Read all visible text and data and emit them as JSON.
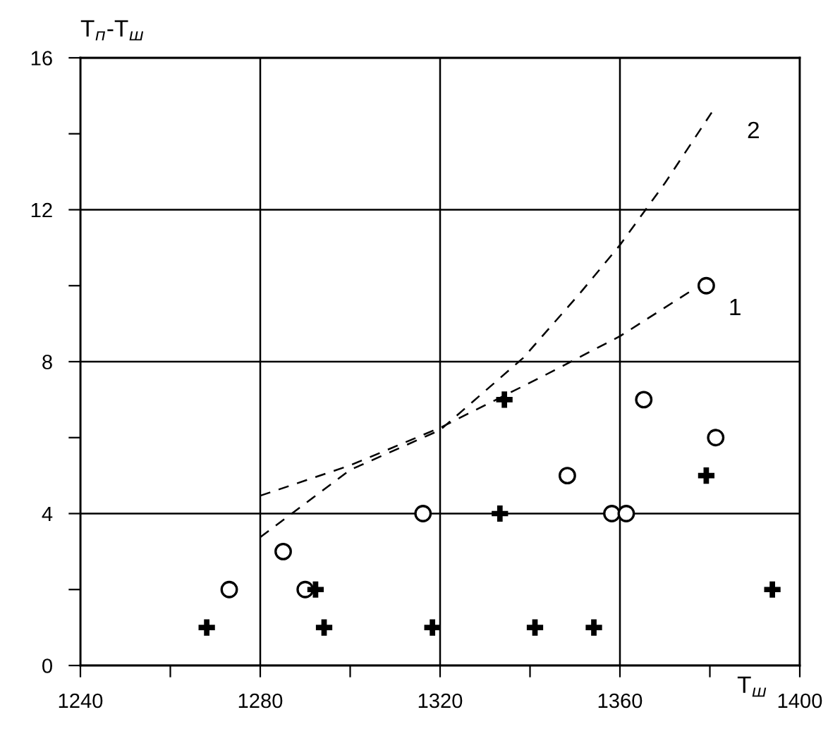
{
  "chart_data": {
    "type": "scatter",
    "xlabel": "T$_{ш}$",
    "ylabel": "T$_{п}$-T$_{ш}$",
    "xlim": [
      1240,
      1400
    ],
    "ylim": [
      0,
      16
    ],
    "xticks": [
      1240,
      {
        "value": 1260,
        "label": null
      },
      1280,
      {
        "value": 1300,
        "label": null
      },
      1320,
      {
        "value": 1340,
        "label": null
      },
      1360,
      {
        "value": 1380,
        "label": null
      },
      1400
    ],
    "yticks": [
      0,
      {
        "value": 2,
        "label": null
      },
      4,
      {
        "value": 6,
        "label": null
      },
      8,
      {
        "value": 10,
        "label": null
      },
      12,
      {
        "value": 14,
        "label": null
      },
      16
    ],
    "grid": true,
    "series": [
      {
        "marker": "circle",
        "color": "#000000",
        "x": [
          1273.1,
          1285.1,
          1290,
          1316.2,
          1348.3,
          1358.2,
          1361.4,
          1365.3,
          1381.3,
          1379.2
        ],
        "values": [
          2,
          3,
          2,
          4,
          5,
          4,
          4,
          7,
          6,
          10
        ]
      },
      {
        "marker": "cross",
        "color": "#000000",
        "x": [
          1268.1,
          1292.3,
          1294.2,
          1318.3,
          1334.3,
          1333.3,
          1341.1,
          1354.2,
          1379.2,
          1393.9
        ],
        "values": [
          1,
          2,
          1,
          1,
          7,
          4,
          1,
          1,
          5,
          2
        ]
      },
      {
        "type": "line",
        "name": "1",
        "line_style": "dashed",
        "color": "#000000",
        "x": [
          1280,
          1300,
          1320,
          1342.6,
          1360,
          1376.3
        ],
        "values": [
          4.47,
          5.27,
          6.26,
          7.6,
          8.67,
          9.9
        ]
      },
      {
        "type": "line",
        "name": "2",
        "line_style": "dashed",
        "color": "#000000",
        "x": [
          1280,
          1300,
          1320,
          1338.5,
          1351.1,
          1360,
          1370,
          1380.4
        ],
        "values": [
          3.38,
          5.15,
          6.2,
          8.1,
          9.8,
          11.07,
          12.7,
          14.56
        ]
      }
    ]
  }
}
